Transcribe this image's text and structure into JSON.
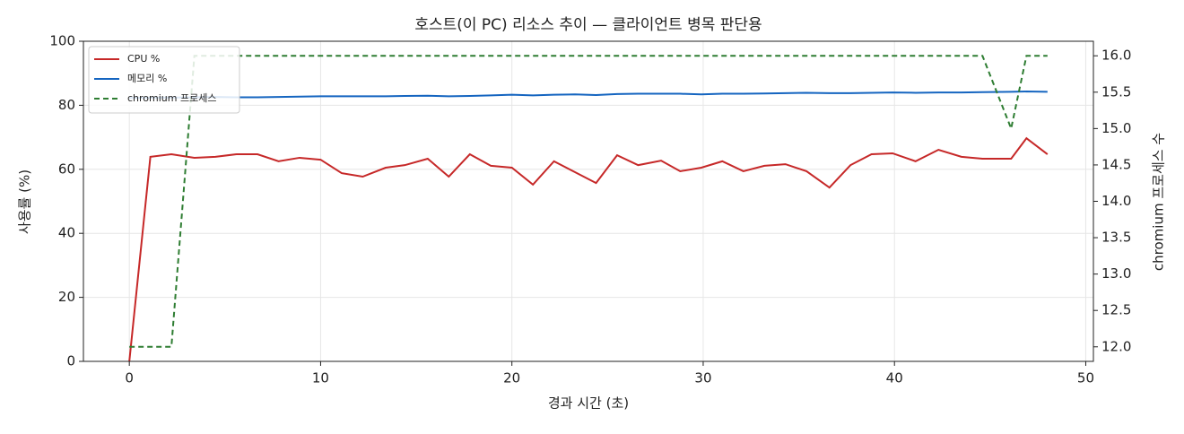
{
  "chart_data": {
    "type": "line",
    "title": "호스트(이 PC) 리소스 추이 — 클라이언트 병목 판단용",
    "x_label": "경과 시간 (초)",
    "y_label": "사용률 (%)",
    "y2_label": "chromium 프로세스 수",
    "x": [
      0,
      1.1,
      2.2,
      3.4,
      4.5,
      5.6,
      6.7,
      7.8,
      8.9,
      10.0,
      11.1,
      12.2,
      13.4,
      14.4,
      15.6,
      16.7,
      17.8,
      18.9,
      20.0,
      21.1,
      22.2,
      23.3,
      24.4,
      25.5,
      26.6,
      27.8,
      28.8,
      29.9,
      31.0,
      32.1,
      33.2,
      34.3,
      35.4,
      36.6,
      37.7,
      38.8,
      39.9,
      41.1,
      42.3,
      43.5,
      44.6,
      46.1,
      46.9,
      48.0
    ],
    "series": [
      {
        "name": "CPU %",
        "color": "#c62828",
        "dash": false,
        "values": [
          0,
          63.9,
          64.7,
          63.6,
          63.9,
          64.7,
          64.7,
          62.5,
          63.6,
          63.0,
          58.8,
          57.7,
          60.5,
          61.3,
          63.3,
          57.7,
          64.7,
          61.1,
          60.5,
          55.2,
          62.5,
          59.1,
          55.7,
          64.4,
          61.3,
          62.7,
          59.4,
          60.5,
          62.5,
          59.4,
          61.1,
          61.6,
          59.4,
          54.3,
          61.3,
          64.7,
          65.0,
          62.5,
          66.1,
          63.9,
          63.3,
          63.3,
          69.7,
          64.7
        ]
      },
      {
        "name": "메모리 %",
        "color": "#1565c0",
        "dash": false,
        "values": [
          82.3,
          82.4,
          82.4,
          82.5,
          82.6,
          82.5,
          82.5,
          82.6,
          82.7,
          82.8,
          82.8,
          82.8,
          82.8,
          82.9,
          83.0,
          82.8,
          82.9,
          83.1,
          83.3,
          83.1,
          83.3,
          83.4,
          83.2,
          83.5,
          83.6,
          83.6,
          83.6,
          83.4,
          83.6,
          83.6,
          83.7,
          83.8,
          83.9,
          83.8,
          83.8,
          83.9,
          84.0,
          83.9,
          84.0,
          84.0,
          84.1,
          84.2,
          84.3,
          84.2
        ]
      },
      {
        "name": "chromium 프로세스",
        "color": "#2e7d32",
        "dash": true,
        "axis": "y2",
        "values": [
          12,
          12,
          12,
          16,
          16,
          16,
          16,
          16,
          16,
          16,
          16,
          16,
          16,
          16,
          16,
          16,
          16,
          16,
          16,
          16,
          16,
          16,
          16,
          16,
          16,
          16,
          16,
          16,
          16,
          16,
          16,
          16,
          16,
          16,
          16,
          16,
          16,
          16,
          16,
          16,
          16,
          15,
          16,
          16
        ]
      }
    ],
    "xlim": [
      -2.4,
      50.4
    ],
    "xticks": [
      0,
      10,
      20,
      30,
      40,
      50
    ],
    "ylim": [
      0,
      100
    ],
    "yticks": [
      0,
      20,
      40,
      60,
      80,
      100
    ],
    "y2lim": [
      11.8,
      16.2
    ],
    "y2ticks": [
      {
        "value": 12,
        "label": "12.0"
      },
      12.5,
      {
        "value": 13,
        "label": "13.0"
      },
      13.5,
      {
        "value": 14,
        "label": "14.0"
      },
      14.5,
      {
        "value": 15,
        "label": "15.0"
      },
      15.5,
      {
        "value": 16,
        "label": "16.0"
      }
    ],
    "grid": true,
    "legend": "upper left"
  }
}
